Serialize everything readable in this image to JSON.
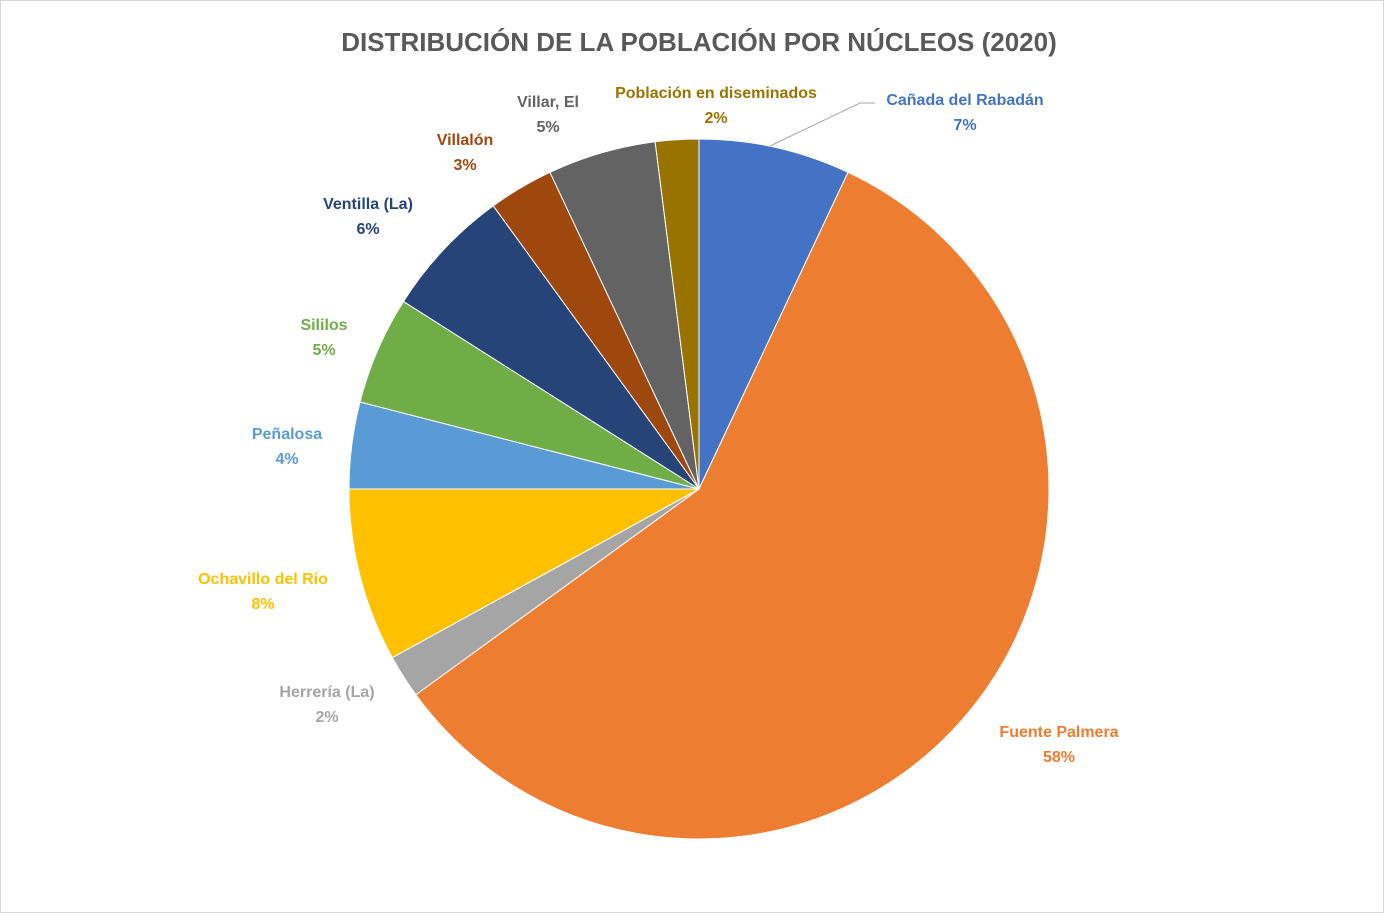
{
  "chart_data": {
    "type": "pie",
    "title": "DISTRIBUCIÓN DE LA POBLACIÓN POR NÚCLEOS (2020)",
    "categories": [
      "Cañada del Rabadán",
      "Fuente Palmera",
      "Herrería (La)",
      "Ochavillo del Río",
      "Peñalosa",
      "Sililos",
      "Ventilla (La)",
      "Villalón",
      "Villar, El",
      "Población en diseminados"
    ],
    "values": [
      7,
      58,
      2,
      8,
      4,
      5,
      6,
      3,
      5,
      2
    ],
    "value_labels": [
      "7%",
      "58%",
      "2%",
      "8%",
      "4%",
      "5%",
      "6%",
      "3%",
      "5%",
      "2%"
    ],
    "colors": [
      "#4472c4",
      "#ed7d31",
      "#a5a5a5",
      "#ffc000",
      "#5b9bd5",
      "#70ad47",
      "#264478",
      "#9e480e",
      "#636363",
      "#997300"
    ]
  }
}
